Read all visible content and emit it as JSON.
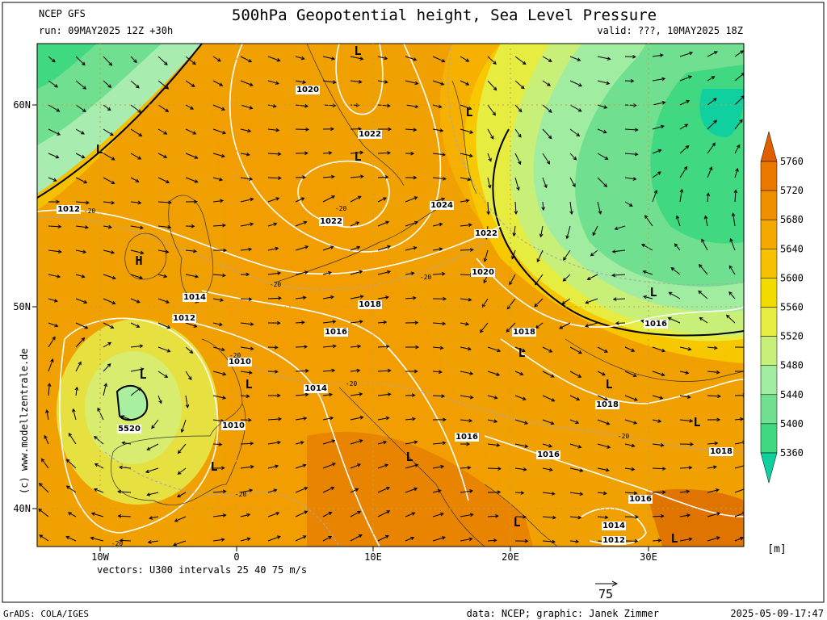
{
  "header": {
    "model": "NCEP GFS",
    "run": "run: 09MAY2025 12Z +30h",
    "title": "500hPa Geopotential height, Sea Level Pressure",
    "valid": "valid: ???, 10MAY2025 18Z"
  },
  "axes": {
    "lat": [
      "60N",
      "50N",
      "40N"
    ],
    "lon": [
      "10W",
      "0",
      "10E",
      "20E",
      "30E"
    ]
  },
  "colorbar": {
    "levels": [
      "5760",
      "5720",
      "5680",
      "5640",
      "5600",
      "5560",
      "5520",
      "5480",
      "5440",
      "5400",
      "5360"
    ],
    "unit": "[m]"
  },
  "pressure_labels": [
    "1020",
    "1022",
    "1022",
    "1024",
    "1022",
    "1020",
    "1018",
    "1016",
    "1014",
    "1016",
    "1016",
    "1018",
    "1016",
    "1018",
    "1016",
    "1014",
    "1012",
    "1018",
    "1012",
    "1014",
    "1012",
    "1010",
    "1010",
    "5520"
  ],
  "temperature_labels": [
    "-20",
    "-20",
    "-20",
    "-20",
    "-20",
    "-20",
    "-20",
    "-20",
    "-20"
  ],
  "pressure_centers": [
    "H",
    "L",
    "L",
    "L",
    "L",
    "L",
    "L",
    "L",
    "L",
    "L",
    "L",
    "L",
    "L",
    "L",
    "L"
  ],
  "credit": "(c) www.modellzentrale.de",
  "vectors_note": "vectors: U300 intervals 25 40 75 m/s",
  "vector_scale": "75",
  "footer": {
    "software": "GrADS: COLA/IGES",
    "source": "data: NCEP; graphic: Janek Zimmer",
    "timestamp": "2025-05-09-17:47"
  }
}
